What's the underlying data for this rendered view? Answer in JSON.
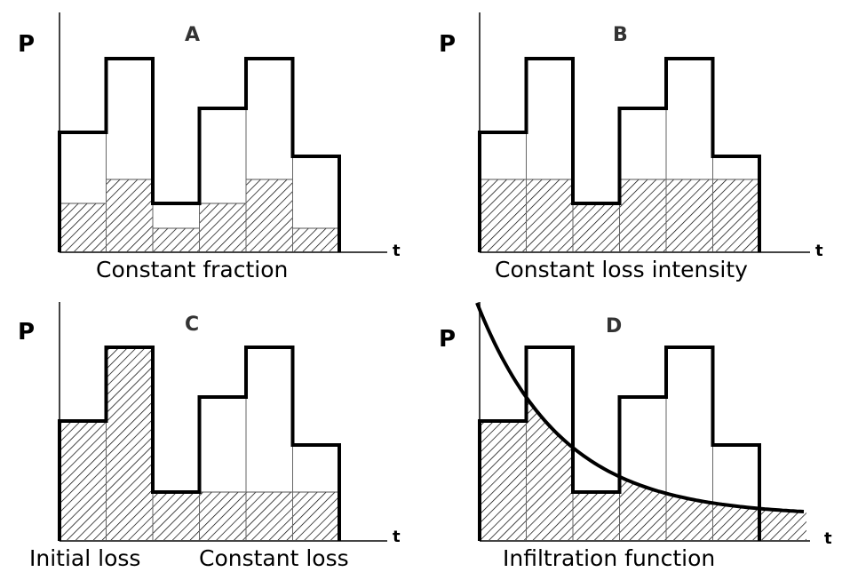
{
  "axis_labels": {
    "y": "P",
    "x": "t"
  },
  "panels": [
    {
      "id": "A",
      "letter": "A",
      "caption": "Constant fraction",
      "bar_heights": [
        135,
        218,
        55,
        162,
        218,
        108
      ],
      "loss_heights": [
        55,
        82,
        27,
        55,
        82,
        27
      ]
    },
    {
      "id": "B",
      "letter": "B",
      "caption": "Constant loss intensity",
      "bar_heights": [
        135,
        218,
        55,
        162,
        218,
        108
      ],
      "loss_heights": [
        82,
        82,
        55,
        82,
        82,
        82
      ]
    },
    {
      "id": "C",
      "letter": "C",
      "captions": [
        "Initial loss",
        "Constant loss"
      ],
      "bar_heights": [
        135,
        218,
        55,
        162,
        218,
        108
      ],
      "loss_heights": [
        135,
        218,
        55,
        55,
        55,
        55
      ]
    },
    {
      "id": "D",
      "letter": "D",
      "caption": "Infiltration function",
      "bar_heights": [
        135,
        218,
        55,
        162,
        218,
        108
      ],
      "curve_note": "decreasing infiltration capacity curve"
    }
  ],
  "colors": {
    "line": "#000000",
    "axis": "#444444",
    "hatch": "#000000"
  }
}
